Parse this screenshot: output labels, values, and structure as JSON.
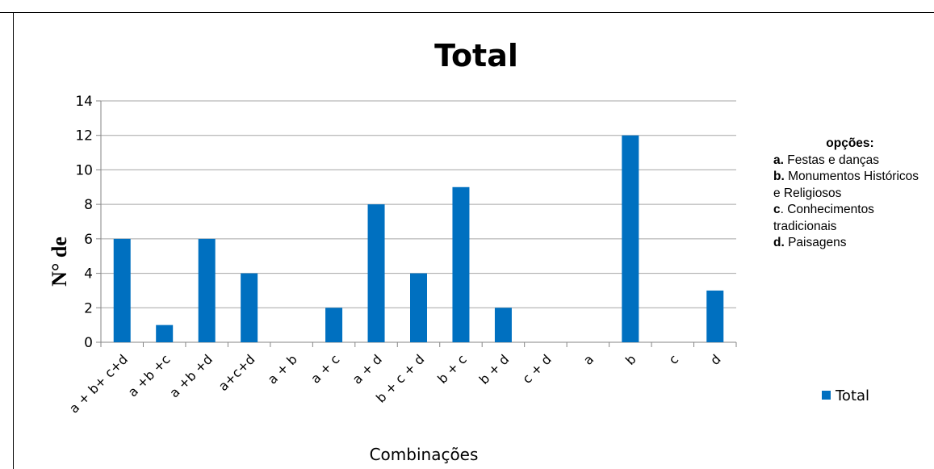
{
  "chart_data": {
    "type": "bar",
    "title": "Total",
    "xlabel": "Combinações",
    "ylabel": "N° de",
    "ylim": [
      0,
      14
    ],
    "yticks": [
      "0",
      "2",
      "4",
      "6",
      "8",
      "10",
      "12",
      "14"
    ],
    "grid": true,
    "legend_position": "right",
    "categories": [
      "a + b+ c+d",
      "a +b +c",
      "a +b +d",
      "a+c+d",
      "a + b",
      "a + c",
      "a + d",
      "b + c + d",
      "b + c",
      "b + d",
      "c + d",
      "a",
      "b",
      "c",
      "d"
    ],
    "series": [
      {
        "name": "Total",
        "color": "#0070C0",
        "values": [
          6,
          1,
          6,
          4,
          0,
          2,
          8,
          4,
          9,
          2,
          0,
          0,
          12,
          0,
          3
        ]
      }
    ]
  },
  "options_note": {
    "heading": "opções:",
    "items": [
      {
        "key": "a.",
        "text": " Festas e danças"
      },
      {
        "key": "b.",
        "text": " Monumentos Históricos e Religiosos"
      },
      {
        "key": "c",
        "text": ". Conhecimentos tradicionais"
      },
      {
        "key": "d.",
        "text": " Paisagens"
      }
    ]
  }
}
